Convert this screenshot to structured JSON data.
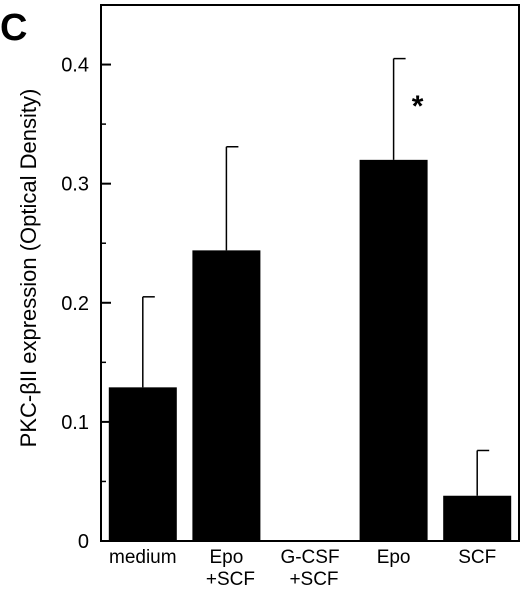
{
  "panel_label": "C",
  "chart_data": {
    "type": "bar",
    "title": "",
    "xlabel": "",
    "ylabel": "PKC-βII expression (Optical Density)",
    "ylim": [
      0,
      0.45
    ],
    "yticks": [
      0,
      0.1,
      0.2,
      0.3,
      0.4
    ],
    "ytick_labels": [
      "0",
      "0.1",
      "0.2",
      "0.3",
      "0.4"
    ],
    "categories": [
      [
        "medium"
      ],
      [
        "Epo",
        "+SCF"
      ],
      [
        "G-CSF",
        "+SCF"
      ],
      [
        "Epo"
      ],
      [
        "SCF"
      ]
    ],
    "values": [
      0.129,
      0.244,
      0.0,
      0.32,
      0.038
    ],
    "error_upper": [
      0.205,
      0.331,
      null,
      0.405,
      0.076
    ],
    "annotations": [
      {
        "category_index": 3,
        "text": "*"
      }
    ],
    "grid": false,
    "bar_color": "#000000"
  }
}
